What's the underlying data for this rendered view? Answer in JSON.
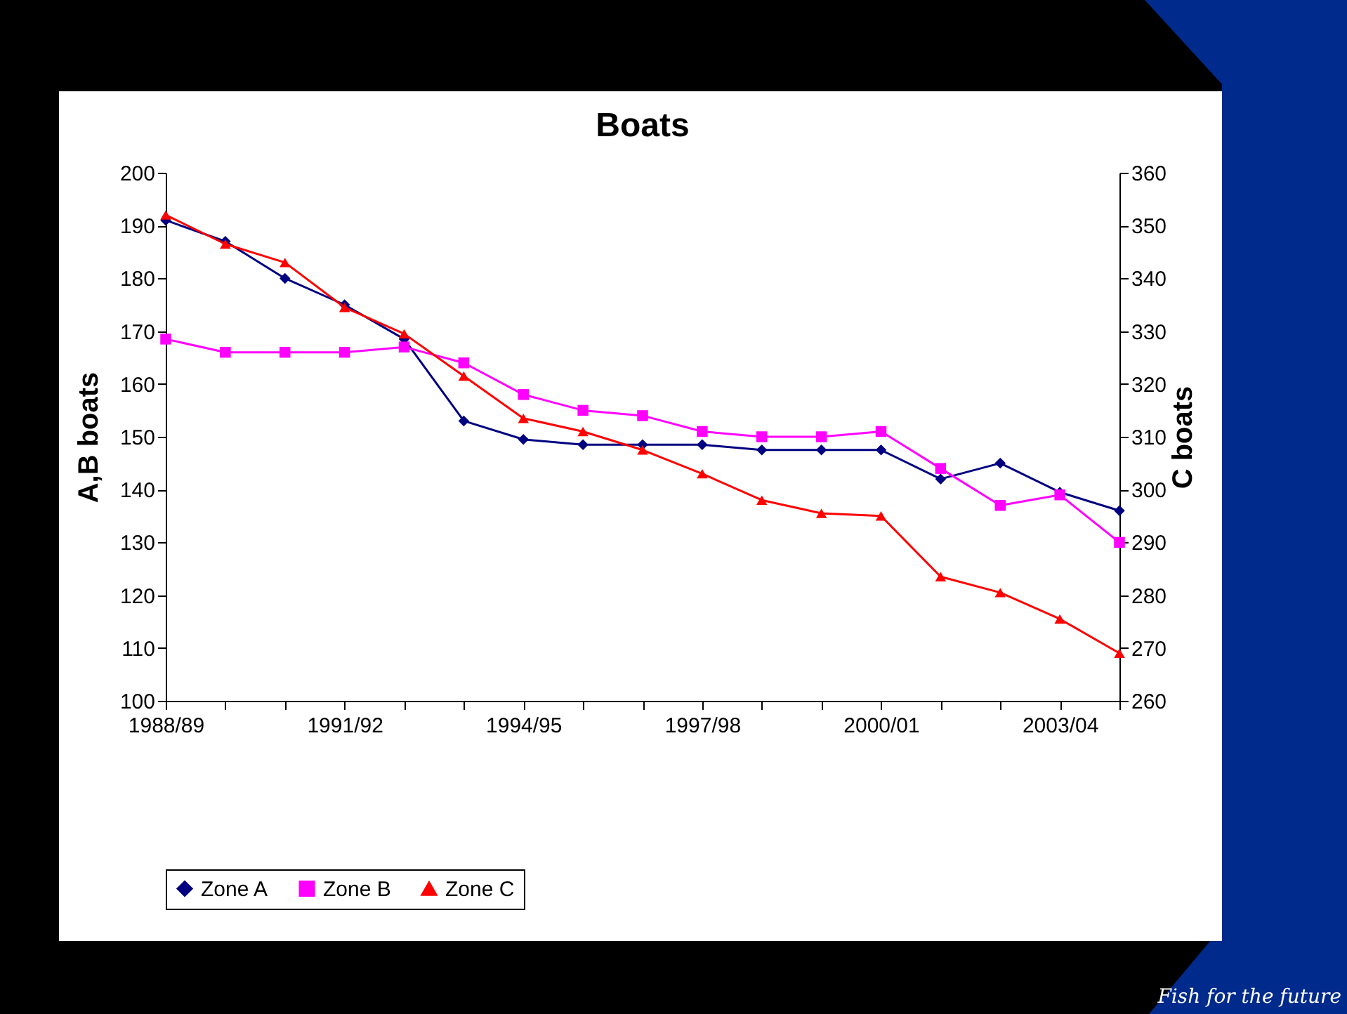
{
  "chart_data": {
    "type": "line",
    "title": "Boats",
    "ylabel": "A,B boats",
    "y2label": "C boats",
    "categories": [
      "1988/89",
      null,
      null,
      "1991/92",
      null,
      null,
      "1994/95",
      null,
      null,
      "1997/98",
      null,
      null,
      "2000/01",
      null,
      null,
      "2003/04",
      null
    ],
    "series": [
      {
        "name": "Zone A",
        "color": "#000080",
        "marker": "diamond",
        "values": [
          191,
          187,
          180,
          175,
          168.5,
          153,
          149.5,
          148.5,
          148.5,
          148.5,
          147.5,
          147.5,
          147.5,
          142,
          145,
          139.5,
          136
        ]
      },
      {
        "name": "Zone B",
        "color": "#ff00ff",
        "marker": "square",
        "values": [
          168.5,
          166,
          166,
          166,
          167,
          164,
          158,
          155,
          154,
          151,
          150,
          150,
          151,
          144,
          137,
          139,
          130
        ]
      },
      {
        "name": "Zone C",
        "color": "#ff0000",
        "marker": "triangle",
        "axis": "y2",
        "values": [
          352,
          346.5,
          343,
          334.5,
          329.5,
          321.5,
          313.5,
          311,
          307.5,
          303,
          298,
          295.5,
          295,
          283.5,
          280.5,
          275.5,
          269
        ]
      }
    ],
    "ylim": [
      100,
      200
    ],
    "yticks": [
      100,
      110,
      120,
      130,
      140,
      150,
      160,
      170,
      180,
      190,
      200
    ],
    "y2lim": [
      260,
      360
    ],
    "y2ticks": [
      260,
      270,
      280,
      290,
      300,
      310,
      320,
      330,
      340,
      350,
      360
    ],
    "grid": false,
    "legend": "bottom",
    "line_style": "solid",
    "annotations": [
      "Fish for the future"
    ]
  }
}
